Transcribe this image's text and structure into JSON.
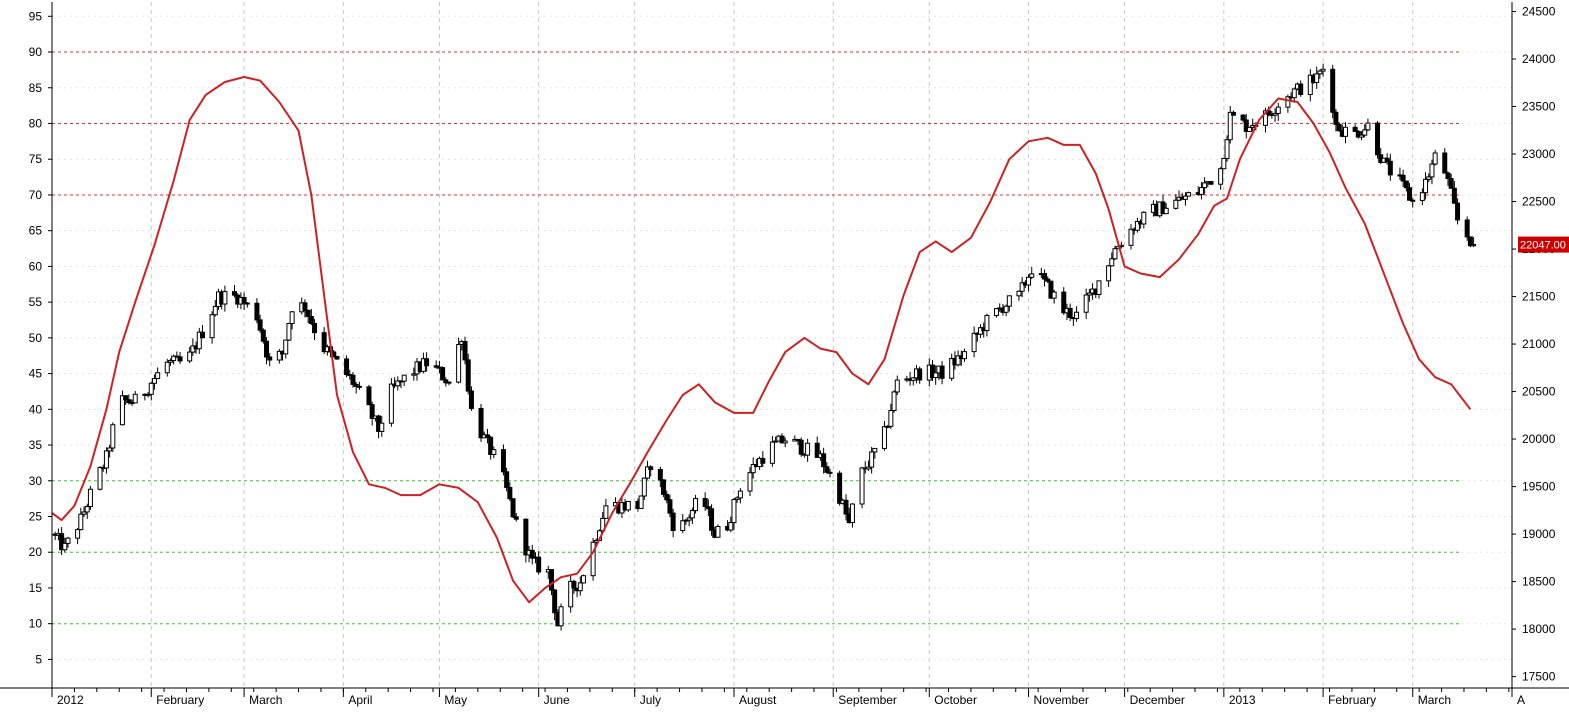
{
  "chart_data": {
    "type": "candlestick",
    "title": "",
    "left_axis": {
      "ylim": [
        1,
        97
      ],
      "ticks": [
        5,
        10,
        15,
        20,
        25,
        30,
        35,
        40,
        45,
        50,
        55,
        60,
        65,
        70,
        75,
        80,
        85,
        90,
        95
      ],
      "tick_labels": [
        "5",
        "10",
        "15",
        "20",
        "25",
        "30",
        "35",
        "40",
        "45",
        "50",
        "55",
        "60",
        "65",
        "70",
        "75",
        "80",
        "85",
        "90",
        "95"
      ],
      "reference_lines": [
        {
          "value": 90,
          "color": "#e03030"
        },
        {
          "value": 80,
          "color": "#e03030"
        },
        {
          "value": 70,
          "color": "#e03030"
        },
        {
          "value": 30,
          "color": "#30d030"
        },
        {
          "value": 20,
          "color": "#30d030"
        },
        {
          "value": 10,
          "color": "#30d030"
        }
      ]
    },
    "right_axis": {
      "ylim": [
        17380,
        24600
      ],
      "ticks": [
        17500,
        18000,
        18500,
        19000,
        19500,
        20000,
        20500,
        21000,
        21500,
        22000,
        22500,
        23000,
        23500,
        24000,
        24500
      ],
      "tick_labels": [
        "17500",
        "18000",
        "18500",
        "19000",
        "19500",
        "20000",
        "20500",
        "21000",
        "21500",
        "22000",
        "22500",
        "23000",
        "23500",
        "24000",
        "24500"
      ],
      "last_price_label": "22047.00",
      "last_price": 22047
    },
    "x_axis": {
      "start": "2012-01-01",
      "end": "2013-04-01",
      "month_labels": [
        {
          "date": "2012-01-01",
          "label": "2012"
        },
        {
          "date": "2012-02-01",
          "label": "February"
        },
        {
          "date": "2012-03-01",
          "label": "March"
        },
        {
          "date": "2012-04-01",
          "label": "April"
        },
        {
          "date": "2012-05-01",
          "label": "May"
        },
        {
          "date": "2012-06-01",
          "label": "June"
        },
        {
          "date": "2012-07-01",
          "label": "July"
        },
        {
          "date": "2012-08-01",
          "label": "August"
        },
        {
          "date": "2012-09-01",
          "label": "September"
        },
        {
          "date": "2012-10-01",
          "label": "October"
        },
        {
          "date": "2012-11-01",
          "label": "November"
        },
        {
          "date": "2012-12-01",
          "label": "December"
        },
        {
          "date": "2013-01-01",
          "label": "2013"
        },
        {
          "date": "2013-02-01",
          "label": "February"
        },
        {
          "date": "2013-03-01",
          "label": "March"
        },
        {
          "date": "2013-04-01",
          "label": "A"
        }
      ]
    },
    "grid": true,
    "price_series_anchors": [
      [
        "2012-01-01",
        19000
      ],
      [
        "2012-01-05",
        18850
      ],
      [
        "2012-01-10",
        19150
      ],
      [
        "2012-01-14",
        19500
      ],
      [
        "2012-01-18",
        19800
      ],
      [
        "2012-01-22",
        20400
      ],
      [
        "2012-01-28",
        20400
      ],
      [
        "2012-02-01",
        20600
      ],
      [
        "2012-02-06",
        20800
      ],
      [
        "2012-02-12",
        20800
      ],
      [
        "2012-02-18",
        21200
      ],
      [
        "2012-02-22",
        21500
      ],
      [
        "2012-02-28",
        21500
      ],
      [
        "2012-03-05",
        21300
      ],
      [
        "2012-03-09",
        20800
      ],
      [
        "2012-03-13",
        20900
      ],
      [
        "2012-03-16",
        21400
      ],
      [
        "2012-03-20",
        21400
      ],
      [
        "2012-03-25",
        21000
      ],
      [
        "2012-03-30",
        20800
      ],
      [
        "2012-04-04",
        20600
      ],
      [
        "2012-04-09",
        20300
      ],
      [
        "2012-04-12",
        20100
      ],
      [
        "2012-04-16",
        20500
      ],
      [
        "2012-04-22",
        20700
      ],
      [
        "2012-04-27",
        20800
      ],
      [
        "2012-05-01",
        20700
      ],
      [
        "2012-05-04",
        20600
      ],
      [
        "2012-05-08",
        21100
      ],
      [
        "2012-05-11",
        20300
      ],
      [
        "2012-05-15",
        20000
      ],
      [
        "2012-05-20",
        19700
      ],
      [
        "2012-05-25",
        19100
      ],
      [
        "2012-05-30",
        18700
      ],
      [
        "2012-06-04",
        18600
      ],
      [
        "2012-06-07",
        18050
      ],
      [
        "2012-06-10",
        18400
      ],
      [
        "2012-06-14",
        18500
      ],
      [
        "2012-06-18",
        18900
      ],
      [
        "2012-06-22",
        19300
      ],
      [
        "2012-06-27",
        19300
      ],
      [
        "2012-07-02",
        19300
      ],
      [
        "2012-07-06",
        19750
      ],
      [
        "2012-07-10",
        19450
      ],
      [
        "2012-07-14",
        19000
      ],
      [
        "2012-07-18",
        19200
      ],
      [
        "2012-07-22",
        19400
      ],
      [
        "2012-07-26",
        19000
      ],
      [
        "2012-07-30",
        19100
      ],
      [
        "2012-08-03",
        19500
      ],
      [
        "2012-08-07",
        19700
      ],
      [
        "2012-08-12",
        19900
      ],
      [
        "2012-08-17",
        20000
      ],
      [
        "2012-08-23",
        19900
      ],
      [
        "2012-08-28",
        19800
      ],
      [
        "2012-09-02",
        19500
      ],
      [
        "2012-09-06",
        19100
      ],
      [
        "2012-09-09",
        19600
      ],
      [
        "2012-09-13",
        19800
      ],
      [
        "2012-09-17",
        20050
      ],
      [
        "2012-09-21",
        20600
      ],
      [
        "2012-09-28",
        20700
      ],
      [
        "2012-10-05",
        20700
      ],
      [
        "2012-10-12",
        20900
      ],
      [
        "2012-10-18",
        21200
      ],
      [
        "2012-10-24",
        21400
      ],
      [
        "2012-10-29",
        21500
      ],
      [
        "2012-11-02",
        21800
      ],
      [
        "2012-11-07",
        21600
      ],
      [
        "2012-11-12",
        21350
      ],
      [
        "2012-11-16",
        21300
      ],
      [
        "2012-11-22",
        21600
      ],
      [
        "2012-11-28",
        22000
      ],
      [
        "2012-12-04",
        22250
      ],
      [
        "2012-12-10",
        22400
      ],
      [
        "2012-12-17",
        22500
      ],
      [
        "2012-12-24",
        22600
      ],
      [
        "2012-12-31",
        22850
      ],
      [
        "2013-01-03",
        23400
      ],
      [
        "2013-01-08",
        23300
      ],
      [
        "2013-01-14",
        23400
      ],
      [
        "2013-01-20",
        23600
      ],
      [
        "2013-01-25",
        23700
      ],
      [
        "2013-01-30",
        23800
      ],
      [
        "2013-02-02",
        23950
      ],
      [
        "2013-02-05",
        23300
      ],
      [
        "2013-02-10",
        23200
      ],
      [
        "2013-02-15",
        23300
      ],
      [
        "2013-02-20",
        22900
      ],
      [
        "2013-02-25",
        22700
      ],
      [
        "2013-03-01",
        22500
      ],
      [
        "2013-03-05",
        22700
      ],
      [
        "2013-03-09",
        23050
      ],
      [
        "2013-03-12",
        22700
      ],
      [
        "2013-03-15",
        22300
      ],
      [
        "2013-03-20",
        22047
      ]
    ],
    "oscillator_series": [
      [
        "2012-01-01",
        25.5
      ],
      [
        "2012-01-04",
        24.5
      ],
      [
        "2012-01-08",
        26.5
      ],
      [
        "2012-01-13",
        32
      ],
      [
        "2012-01-18",
        40
      ],
      [
        "2012-01-22",
        48
      ],
      [
        "2012-01-27",
        55
      ],
      [
        "2012-02-02",
        63
      ],
      [
        "2012-02-08",
        72
      ],
      [
        "2012-02-13",
        80.5
      ],
      [
        "2012-02-18",
        84
      ],
      [
        "2012-02-24",
        85.8
      ],
      [
        "2012-03-01",
        86.5
      ],
      [
        "2012-03-06",
        86
      ],
      [
        "2012-03-12",
        83
      ],
      [
        "2012-03-18",
        79
      ],
      [
        "2012-03-22",
        70
      ],
      [
        "2012-03-26",
        56
      ],
      [
        "2012-03-30",
        42
      ],
      [
        "2012-04-04",
        34
      ],
      [
        "2012-04-09",
        29.5
      ],
      [
        "2012-04-14",
        29
      ],
      [
        "2012-04-19",
        28
      ],
      [
        "2012-04-25",
        28
      ],
      [
        "2012-05-01",
        29.5
      ],
      [
        "2012-05-07",
        29
      ],
      [
        "2012-05-13",
        27
      ],
      [
        "2012-05-19",
        22
      ],
      [
        "2012-05-24",
        16
      ],
      [
        "2012-05-29",
        13
      ],
      [
        "2012-06-03",
        15
      ],
      [
        "2012-06-08",
        16.5
      ],
      [
        "2012-06-13",
        17
      ],
      [
        "2012-06-18",
        20
      ],
      [
        "2012-06-24",
        25.5
      ],
      [
        "2012-06-30",
        30
      ],
      [
        "2012-07-05",
        34
      ],
      [
        "2012-07-11",
        38.5
      ],
      [
        "2012-07-16",
        42
      ],
      [
        "2012-07-21",
        43.5
      ],
      [
        "2012-07-26",
        41
      ],
      [
        "2012-08-01",
        39.5
      ],
      [
        "2012-08-07",
        39.5
      ],
      [
        "2012-08-12",
        44
      ],
      [
        "2012-08-17",
        48
      ],
      [
        "2012-08-23",
        50
      ],
      [
        "2012-08-28",
        48.5
      ],
      [
        "2012-09-02",
        48
      ],
      [
        "2012-09-07",
        45
      ],
      [
        "2012-09-12",
        43.5
      ],
      [
        "2012-09-17",
        47
      ],
      [
        "2012-09-23",
        56
      ],
      [
        "2012-09-28",
        62
      ],
      [
        "2012-10-03",
        63.5
      ],
      [
        "2012-10-08",
        62
      ],
      [
        "2012-10-14",
        64
      ],
      [
        "2012-10-20",
        69
      ],
      [
        "2012-10-26",
        75
      ],
      [
        "2012-11-01",
        77.5
      ],
      [
        "2012-11-07",
        78
      ],
      [
        "2012-11-12",
        77
      ],
      [
        "2012-11-17",
        77
      ],
      [
        "2012-11-22",
        73
      ],
      [
        "2012-11-26",
        68
      ],
      [
        "2012-12-01",
        60
      ],
      [
        "2012-12-06",
        59
      ],
      [
        "2012-12-12",
        58.5
      ],
      [
        "2012-12-18",
        61
      ],
      [
        "2012-12-24",
        64.5
      ],
      [
        "2012-12-29",
        68.5
      ],
      [
        "2013-01-02",
        69.5
      ],
      [
        "2013-01-06",
        75
      ],
      [
        "2013-01-12",
        80.5
      ],
      [
        "2013-01-18",
        83.5
      ],
      [
        "2013-01-24",
        83
      ],
      [
        "2013-01-29",
        80
      ],
      [
        "2013-02-03",
        76
      ],
      [
        "2013-02-08",
        71
      ],
      [
        "2013-02-14",
        66
      ],
      [
        "2013-02-20",
        59
      ],
      [
        "2013-02-26",
        52
      ],
      [
        "2013-03-03",
        47
      ],
      [
        "2013-03-08",
        44.5
      ],
      [
        "2013-03-13",
        43.5
      ],
      [
        "2013-03-19",
        40
      ]
    ],
    "colors": {
      "oscillator": "#cc2222",
      "candle_up_fill": "#ffffff",
      "candle_down_fill": "#000000",
      "grid": "#c8c8c8",
      "last_price_bg": "#cc0000",
      "last_price_text": "#ffffff"
    }
  }
}
